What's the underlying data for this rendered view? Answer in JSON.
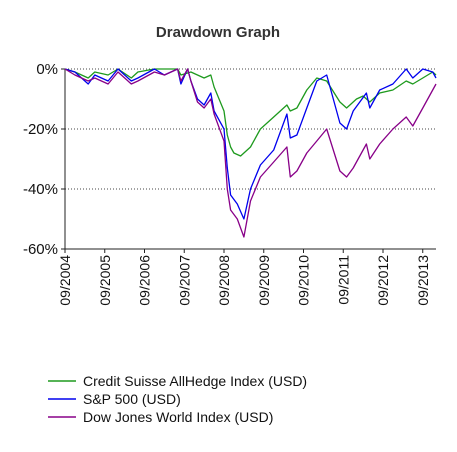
{
  "chart_data": {
    "type": "line",
    "title": "Drawdown Graph",
    "xlabel": "",
    "ylabel": "",
    "ylim": [
      -60,
      0
    ],
    "xlim": [
      "2004-09",
      "2014-01"
    ],
    "y_ticks": [
      "0%",
      "-20%",
      "-40%",
      "-60%"
    ],
    "y_tick_values": [
      0,
      -20,
      -40,
      -60
    ],
    "x_ticks": [
      "09/2004",
      "09/2005",
      "09/2006",
      "09/2007",
      "09/2008",
      "09/2009",
      "09/2010",
      "09/2011",
      "09/2012",
      "09/2013"
    ],
    "grid": "horizontal dotted at 0%, -20%, -40%",
    "legend_position": "bottom",
    "series": [
      {
        "name": "Credit Suisse AllHedge Index (USD)",
        "color": "#1e9a1e",
        "x": [
          "2004-09",
          "2004-12",
          "2005-04",
          "2005-06",
          "2005-10",
          "2006-01",
          "2006-05",
          "2006-07",
          "2006-12",
          "2007-07",
          "2007-08",
          "2007-11",
          "2008-03",
          "2008-05",
          "2008-06",
          "2008-09",
          "2008-10",
          "2008-11",
          "2008-12",
          "2009-02",
          "2009-05",
          "2009-08",
          "2009-12",
          "2010-04",
          "2010-05",
          "2010-07",
          "2010-10",
          "2011-01",
          "2011-04",
          "2011-08",
          "2011-10",
          "2012-01",
          "2012-03",
          "2012-05",
          "2012-08",
          "2012-12",
          "2013-04",
          "2013-06",
          "2013-09",
          "2013-12",
          "2014-01"
        ],
        "values": [
          0,
          -1,
          -3,
          -1,
          -2,
          0,
          -3,
          -1,
          0,
          0,
          -2,
          -1,
          -3,
          -2,
          -6,
          -14,
          -22,
          -26,
          -28,
          -29,
          -26,
          -20,
          -16,
          -12,
          -14,
          -13,
          -7,
          -3,
          -4,
          -11,
          -13,
          -10,
          -9,
          -11,
          -8,
          -7,
          -4,
          -5,
          -3,
          -1,
          -2
        ]
      },
      {
        "name": "S&P 500 (USD)",
        "color": "#0000ee",
        "x": [
          "2004-09",
          "2004-12",
          "2005-04",
          "2005-06",
          "2005-10",
          "2006-01",
          "2006-05",
          "2006-07",
          "2006-12",
          "2007-03",
          "2007-07",
          "2007-08",
          "2007-10",
          "2007-11",
          "2008-01",
          "2008-03",
          "2008-05",
          "2008-06",
          "2008-09",
          "2008-10",
          "2008-11",
          "2009-01",
          "2009-03",
          "2009-05",
          "2009-08",
          "2009-12",
          "2010-04",
          "2010-05",
          "2010-07",
          "2010-10",
          "2011-01",
          "2011-04",
          "2011-08",
          "2011-10",
          "2011-12",
          "2012-04",
          "2012-05",
          "2012-08",
          "2012-12",
          "2013-04",
          "2013-06",
          "2013-09",
          "2013-12",
          "2014-01"
        ],
        "values": [
          0,
          -1,
          -5,
          -2,
          -4,
          0,
          -4,
          -3,
          0,
          -2,
          0,
          -5,
          0,
          -4,
          -10,
          -12,
          -8,
          -14,
          -20,
          -33,
          -42,
          -45,
          -50,
          -40,
          -32,
          -27,
          -15,
          -23,
          -22,
          -13,
          -4,
          -2,
          -18,
          -20,
          -14,
          -8,
          -13,
          -7,
          -5,
          0,
          -3,
          0,
          -1,
          -3
        ]
      },
      {
        "name": "Dow Jones World Index (USD)",
        "color": "#880088",
        "x": [
          "2004-09",
          "2004-12",
          "2005-04",
          "2005-06",
          "2005-10",
          "2006-01",
          "2006-05",
          "2006-07",
          "2006-12",
          "2007-03",
          "2007-07",
          "2007-08",
          "2007-10",
          "2007-11",
          "2008-01",
          "2008-03",
          "2008-05",
          "2008-06",
          "2008-09",
          "2008-10",
          "2008-11",
          "2009-01",
          "2009-03",
          "2009-05",
          "2009-08",
          "2009-12",
          "2010-04",
          "2010-05",
          "2010-07",
          "2010-10",
          "2011-01",
          "2011-04",
          "2011-08",
          "2011-10",
          "2011-12",
          "2012-04",
          "2012-05",
          "2012-08",
          "2012-12",
          "2013-04",
          "2013-06",
          "2013-09",
          "2013-12",
          "2014-01"
        ],
        "values": [
          0,
          -2,
          -4,
          -3,
          -5,
          -1,
          -5,
          -4,
          -1,
          -2,
          0,
          -4,
          0,
          -4,
          -11,
          -13,
          -10,
          -15,
          -24,
          -40,
          -47,
          -50,
          -56,
          -44,
          -36,
          -31,
          -26,
          -36,
          -34,
          -28,
          -24,
          -20,
          -34,
          -36,
          -33,
          -25,
          -30,
          -25,
          -20,
          -16,
          -19,
          -13,
          -7,
          -5
        ]
      }
    ]
  }
}
